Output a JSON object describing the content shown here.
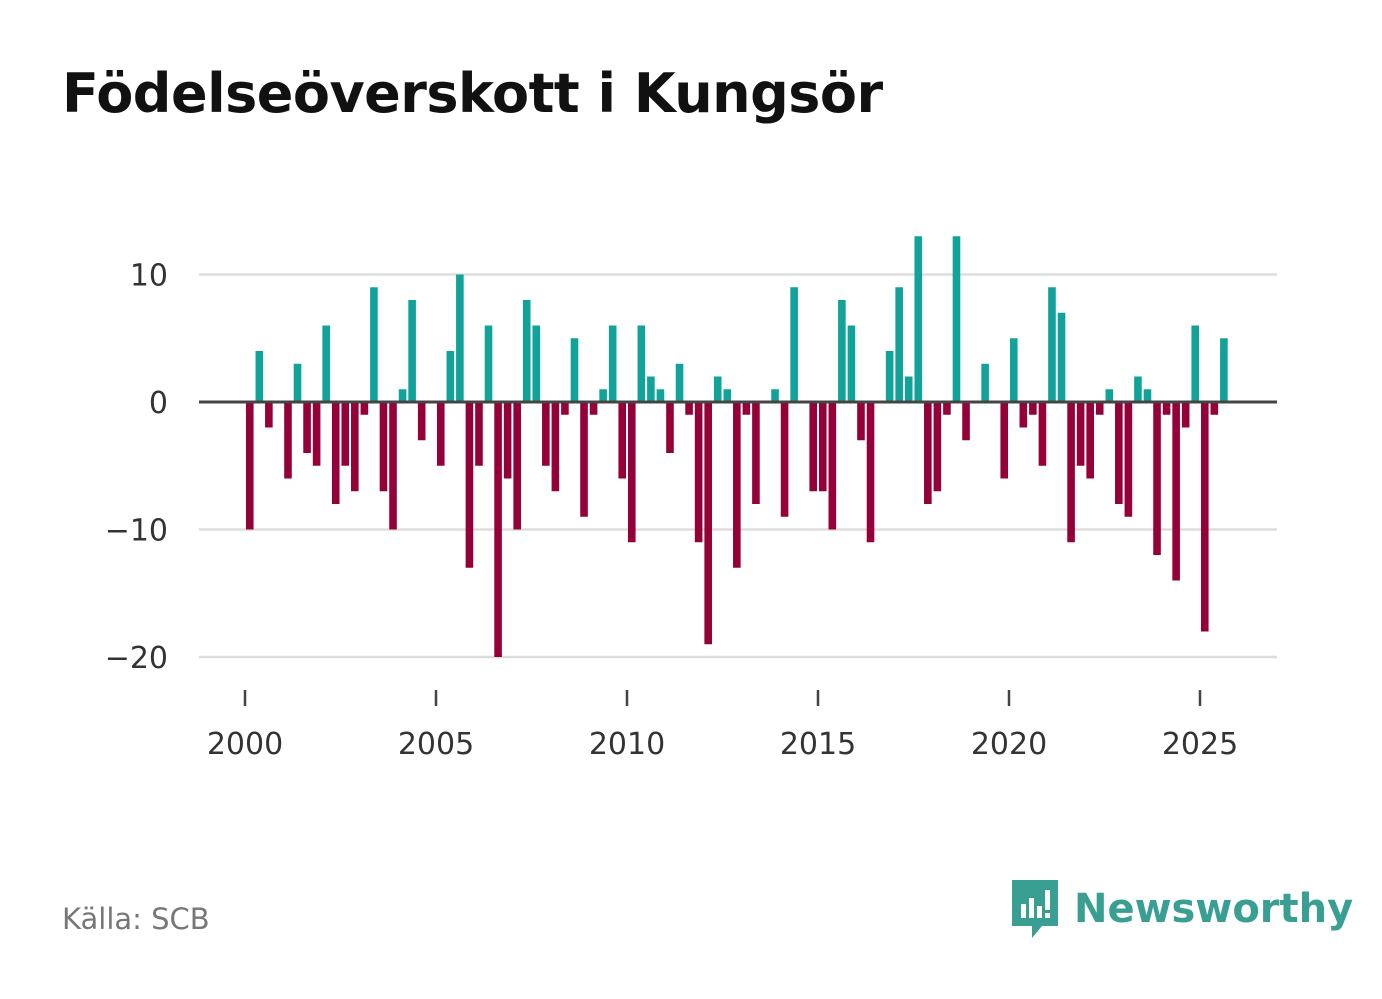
{
  "title": "Födelseöverskott i Kungsör",
  "source": "Källa: SCB",
  "brand": "Newsworthy",
  "colors": {
    "positive": "#11a39a",
    "negative": "#950038",
    "grid": "#dddddd",
    "zero_line": "#444444",
    "brand": "#3a9f93"
  },
  "chart_data": {
    "type": "bar",
    "title": "Födelseöverskott i Kungsör",
    "xlabel": "",
    "ylabel": "",
    "grid": true,
    "ylim": [
      -22,
      13
    ],
    "yticks": [
      10,
      0,
      -10,
      -20
    ],
    "ytick_labels": [
      "10",
      "0",
      "−10",
      "−20"
    ],
    "xlim": [
      1999.1,
      2026.9
    ],
    "xticks": [
      2000,
      2005,
      2010,
      2015,
      2020,
      2025
    ],
    "xtick_labels": [
      "2000",
      "2005",
      "2010",
      "2015",
      "2020",
      "2025"
    ],
    "frequency": "quarterly",
    "start": "2000 Q1",
    "values": [
      -10,
      4,
      -2,
      0,
      -6,
      3,
      -4,
      -5,
      6,
      -8,
      -5,
      -7,
      -1,
      9,
      -7,
      -10,
      1,
      8,
      -3,
      0,
      -5,
      4,
      10,
      -13,
      -5,
      6,
      -20,
      -6,
      -10,
      8,
      6,
      -5,
      -7,
      -1,
      5,
      -9,
      -1,
      1,
      6,
      -6,
      -11,
      6,
      2,
      1,
      -4,
      3,
      -1,
      -11,
      -19,
      2,
      1,
      -13,
      -1,
      -8,
      0,
      1,
      -9,
      9,
      0,
      -7,
      -7,
      -10,
      8,
      6,
      -3,
      -11,
      0,
      4,
      9,
      2,
      13,
      -8,
      -7,
      -1,
      13,
      -3,
      0,
      3,
      0,
      -6,
      5,
      -2,
      -1,
      -5,
      9,
      7,
      -11,
      -5,
      -6,
      -1,
      1,
      -8,
      -9,
      2,
      1,
      -12,
      -1,
      -14,
      -2,
      6,
      -18,
      -1,
      5
    ]
  }
}
